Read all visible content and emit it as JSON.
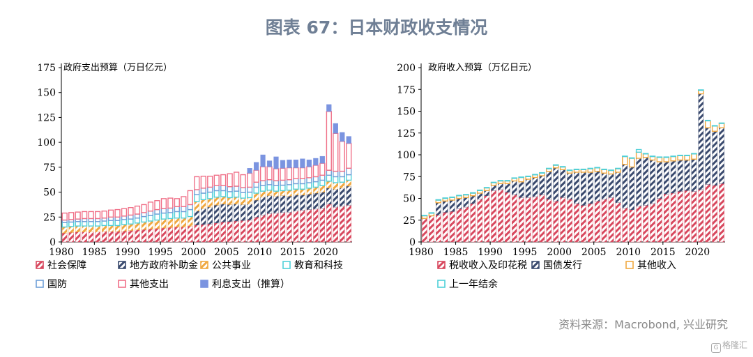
{
  "title": "图表 67：日本财政收支情况",
  "source": "资料来源：Macrobond, 兴业研究",
  "logo": "格隆汇",
  "chart_data": [
    {
      "type": "bar",
      "stacked": true,
      "title": "政府支出预算（万日亿元）",
      "ylim": [
        0,
        175
      ],
      "yticks": [
        0,
        25,
        50,
        75,
        100,
        125,
        150,
        175
      ],
      "xticks": [
        1980,
        1985,
        1990,
        1995,
        2000,
        2005,
        2010,
        2015,
        2020
      ],
      "legend_position": "bottom",
      "categories": [
        1980,
        1981,
        1982,
        1983,
        1984,
        1985,
        1986,
        1987,
        1988,
        1989,
        1990,
        1991,
        1992,
        1993,
        1994,
        1995,
        1996,
        1997,
        1998,
        1999,
        2000,
        2001,
        2002,
        2003,
        2004,
        2005,
        2006,
        2007,
        2008,
        2009,
        2010,
        2011,
        2012,
        2013,
        2014,
        2015,
        2016,
        2017,
        2018,
        2019,
        2020,
        2021,
        2022,
        2023
      ],
      "series": [
        {
          "name": "社会保障",
          "color": "#d8485e",
          "pattern": "hatch",
          "values": [
            9,
            9.5,
            10,
            10,
            10,
            10,
            10.5,
            10.5,
            10.5,
            11,
            11.5,
            12,
            12.5,
            13,
            13.5,
            14,
            14.5,
            15,
            15,
            16,
            17,
            17.5,
            18,
            19,
            20,
            20.5,
            21,
            21.5,
            22,
            25,
            27,
            28.5,
            29,
            29.5,
            30,
            31,
            32,
            32.5,
            33,
            34,
            38,
            35,
            36,
            37
          ]
        },
        {
          "name": "地方政府补助金",
          "color": "#3a4a6e",
          "pattern": "hatch",
          "values": [
            0,
            0,
            0,
            0,
            0,
            0,
            0,
            0,
            0,
            0,
            0,
            0,
            0,
            0,
            0,
            0,
            0,
            0,
            0,
            0,
            14,
            16,
            17,
            18,
            18,
            17,
            17,
            16,
            16,
            17,
            18,
            18,
            17,
            17,
            16,
            16,
            15,
            15.5,
            16,
            16,
            16,
            18,
            18,
            19
          ]
        },
        {
          "name": "公共事业",
          "color": "#f0a840",
          "pattern": "hatch",
          "values": [
            6,
            6,
            6,
            6,
            6,
            6,
            6,
            6,
            6,
            6.5,
            6.5,
            7,
            7.5,
            8,
            8.5,
            9,
            9,
            9,
            9,
            9.5,
            9.5,
            9,
            8.5,
            8,
            7.5,
            7,
            7,
            6.5,
            6.5,
            7,
            6,
            5.5,
            5,
            5,
            6,
            6,
            6,
            6,
            6,
            6.5,
            7,
            6.5,
            6,
            6
          ]
        },
        {
          "name": "教育和科技",
          "color": "#4fd0d8",
          "pattern": "hollow",
          "values": [
            4.5,
            4.5,
            4.5,
            4.5,
            4.5,
            4.5,
            4.5,
            5,
            5,
            5,
            5,
            5,
            5.5,
            5.5,
            6,
            6,
            6,
            6.5,
            6.5,
            7,
            7,
            6.5,
            6.5,
            6.5,
            6,
            6,
            6,
            5.5,
            5.5,
            6,
            5.5,
            5.5,
            5.5,
            5.5,
            5.5,
            5.5,
            5.5,
            5.5,
            5.5,
            5.5,
            6,
            6,
            5.5,
            5.5
          ]
        },
        {
          "name": "国防",
          "color": "#6fa0d8",
          "pattern": "hollow",
          "values": [
            2.5,
            2.5,
            2.5,
            3,
            3,
            3,
            3,
            3.5,
            3.5,
            3.5,
            4,
            4,
            4,
            4.5,
            4.5,
            4.5,
            4.5,
            5,
            5,
            5,
            5,
            5,
            5,
            5,
            5,
            5,
            5,
            5,
            5,
            5,
            5,
            5,
            5,
            5,
            5,
            5,
            5,
            5,
            5,
            5,
            5,
            5.5,
            5.5,
            6.5
          ]
        },
        {
          "name": "其他支出",
          "color": "#f07088",
          "pattern": "hollow",
          "values": [
            7,
            7,
            7,
            7,
            7,
            7,
            7,
            7,
            7.5,
            7.5,
            7.5,
            8,
            8,
            9,
            9,
            10,
            10,
            8,
            10,
            14,
            13,
            12,
            11,
            10.5,
            11,
            13,
            14,
            13,
            14,
            12,
            14,
            13,
            12,
            12,
            12,
            11,
            11,
            11,
            11.5,
            12,
            59,
            38,
            30,
            25
          ]
        },
        {
          "name": "利息支出（推算）",
          "color": "#7b94e0",
          "pattern": "solid",
          "values": [
            0,
            0,
            0,
            0,
            0,
            0,
            0,
            0,
            0,
            0,
            0,
            0,
            0,
            0,
            0,
            0,
            0,
            0,
            0,
            0,
            0,
            0,
            0,
            0,
            0,
            0,
            0,
            0,
            5,
            8,
            12,
            6,
            12,
            8,
            8,
            8,
            9,
            7,
            7,
            7,
            7,
            10,
            9,
            7
          ]
        }
      ]
    },
    {
      "type": "bar",
      "stacked": true,
      "title": "政府收入预算（万亿日元）",
      "ylim": [
        0,
        200
      ],
      "yticks": [
        0,
        25,
        50,
        75,
        100,
        125,
        150,
        175,
        200
      ],
      "xticks": [
        1980,
        1985,
        1990,
        1995,
        2000,
        2005,
        2010,
        2015,
        2020
      ],
      "legend_position": "bottom",
      "categories": [
        1980,
        1981,
        1982,
        1983,
        1984,
        1985,
        1986,
        1987,
        1988,
        1989,
        1990,
        1991,
        1992,
        1993,
        1994,
        1995,
        1996,
        1997,
        1998,
        1999,
        2000,
        2001,
        2002,
        2003,
        2004,
        2005,
        2006,
        2007,
        2008,
        2009,
        2010,
        2011,
        2012,
        2013,
        2014,
        2015,
        2016,
        2017,
        2018,
        2019,
        2020,
        2021,
        2022,
        2023
      ],
      "series": [
        {
          "name": "税收收入及印花税",
          "color": "#d8485e",
          "pattern": "hatch",
          "values": [
            27,
            30,
            31,
            34,
            35,
            38,
            40,
            44,
            49,
            53,
            59,
            60,
            57,
            54,
            51,
            51,
            52,
            54,
            49,
            47,
            51,
            49,
            44,
            42,
            44,
            47,
            49,
            51,
            45,
            39,
            37,
            41,
            42,
            44,
            50,
            55,
            56,
            58,
            59,
            58,
            60,
            66,
            65,
            67
          ]
        },
        {
          "name": "国债发行",
          "color": "#3a4a6e",
          "pattern": "hatch",
          "values": [
            0,
            0,
            14,
            13,
            13,
            12,
            11,
            9,
            7,
            6,
            6,
            7,
            10,
            16,
            18,
            21,
            22,
            22,
            32,
            38,
            32,
            30,
            36,
            38,
            36,
            34,
            30,
            27,
            35,
            50,
            49,
            55,
            55,
            50,
            42,
            37,
            37,
            36,
            35,
            37,
            110,
            65,
            62,
            64
          ]
        },
        {
          "name": "其他收入",
          "color": "#f0a840",
          "pattern": "hollow",
          "values": [
            3,
            3,
            3,
            3,
            3,
            3,
            3,
            3,
            3,
            3,
            3,
            3,
            3,
            3,
            5,
            3,
            3,
            3,
            3,
            3,
            3,
            3,
            3,
            3,
            4,
            4,
            4,
            4,
            4,
            9,
            10,
            7,
            4,
            4,
            5,
            5,
            5,
            5,
            5,
            6,
            4,
            8,
            6,
            5
          ]
        },
        {
          "name": "上一年结余",
          "color": "#4fd0d8",
          "pattern": "hollow",
          "values": [
            0.5,
            0.5,
            0.5,
            0.5,
            0.5,
            0.5,
            0.5,
            0.5,
            0.5,
            0.5,
            0.5,
            0.5,
            0.5,
            0.5,
            0.5,
            0.5,
            0.5,
            0.5,
            0.5,
            0.5,
            0.5,
            0.5,
            0.5,
            0.5,
            0.5,
            0.5,
            0.5,
            0.5,
            0.5,
            0.5,
            0.5,
            3,
            0.5,
            0.5,
            0.5,
            0.5,
            0.5,
            0.5,
            0.5,
            0.5,
            0.5,
            0.5,
            0.5,
            0.5
          ]
        }
      ]
    }
  ]
}
